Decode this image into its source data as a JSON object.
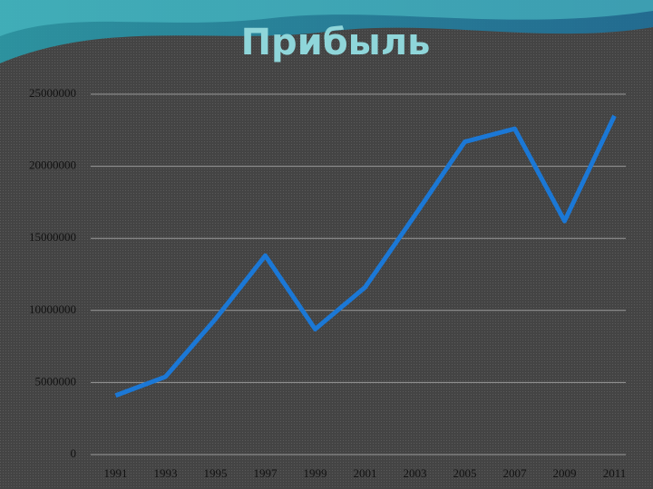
{
  "chart_data": {
    "type": "line",
    "title": "Прибыль",
    "categories": [
      "1991",
      "1993",
      "1995",
      "1997",
      "1999",
      "2001",
      "2003",
      "2005",
      "2007",
      "2009",
      "2011"
    ],
    "series": [
      {
        "name": "Прибыль",
        "color": "#1b78d6",
        "values": [
          4100000,
          5400000,
          9400000,
          13800000,
          8700000,
          11600000,
          16600000,
          21700000,
          22600000,
          16200000,
          23500000
        ]
      }
    ],
    "ylim": [
      0,
      25000000
    ],
    "yticks": [
      0,
      5000000,
      10000000,
      15000000,
      20000000,
      25000000
    ],
    "grid": true
  }
}
